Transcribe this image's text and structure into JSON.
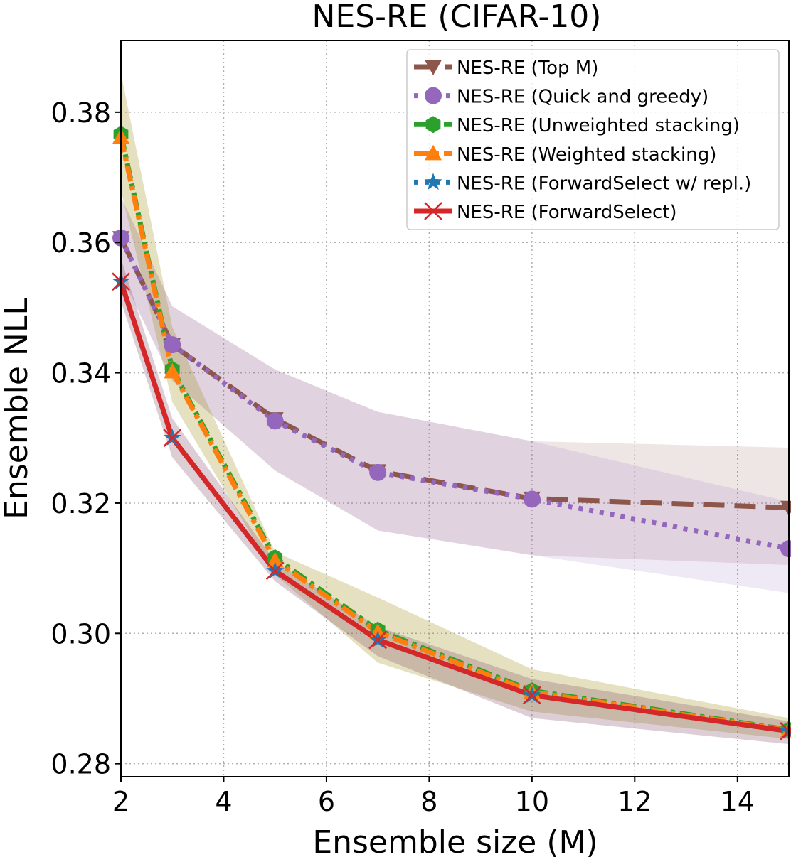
{
  "chart_data": {
    "type": "line",
    "title": "NES-RE (CIFAR-10)",
    "xlabel": "Ensemble size (M)",
    "ylabel": "Ensemble NLL",
    "xlim": [
      2,
      15
    ],
    "ylim": [
      0.278,
      0.391
    ],
    "xticks": [
      2,
      4,
      6,
      8,
      10,
      12,
      14
    ],
    "xtick_labels": [
      "2",
      "4",
      "6",
      "8",
      "10",
      "12",
      "14"
    ],
    "yticks": [
      0.28,
      0.3,
      0.32,
      0.34,
      0.36,
      0.38
    ],
    "ytick_labels": [
      "0.28",
      "0.30",
      "0.32",
      "0.34",
      "0.36",
      "0.38"
    ],
    "grid": true,
    "legend_position": "top-right",
    "x": [
      2,
      3,
      5,
      7,
      10,
      15
    ],
    "series": [
      {
        "name": "NES-RE (Top M)",
        "color": "#8c564b",
        "dash": "long-dash",
        "marker": "triangle-down",
        "values": [
          0.3607,
          0.3443,
          0.3329,
          0.3249,
          0.3207,
          0.3193
        ],
        "band_low": [
          0.355,
          0.3388,
          0.325,
          0.3158,
          0.312,
          0.3105
        ],
        "band_high": [
          0.367,
          0.3502,
          0.3405,
          0.334,
          0.3295,
          0.3285
        ]
      },
      {
        "name": "NES-RE (Quick and greedy)",
        "color": "#9467bd",
        "dash": "dotted",
        "marker": "circle",
        "values": [
          0.3607,
          0.3443,
          0.3326,
          0.3247,
          0.3206,
          0.313
        ],
        "band_low": [
          0.355,
          0.3388,
          0.325,
          0.3158,
          0.312,
          0.3062
        ],
        "band_high": [
          0.367,
          0.3502,
          0.3405,
          0.334,
          0.3295,
          0.3202
        ]
      },
      {
        "name": "NES-RE (Unweighted stacking)",
        "color": "#2ca02c",
        "dash": "dash-dot",
        "marker": "hexagon",
        "values": [
          0.3766,
          0.3405,
          0.3116,
          0.3005,
          0.2912,
          0.2852
        ],
        "band_low": [
          0.368,
          0.3355,
          0.309,
          0.2955,
          0.288,
          0.2838
        ],
        "band_high": [
          0.386,
          0.347,
          0.3125,
          0.3055,
          0.2945,
          0.287
        ]
      },
      {
        "name": "NES-RE (Weighted stacking)",
        "color": "#ff7f0e",
        "dash": "dash-dot",
        "marker": "triangle-up",
        "values": [
          0.3762,
          0.3402,
          0.3112,
          0.3002,
          0.291,
          0.2851
        ],
        "band_low": [
          0.368,
          0.3355,
          0.309,
          0.2955,
          0.288,
          0.2838
        ],
        "band_high": [
          0.386,
          0.347,
          0.3125,
          0.3055,
          0.2945,
          0.287
        ]
      },
      {
        "name": "NES-RE (ForwardSelect w/ repl.)",
        "color": "#1f77b4",
        "dash": "dotted",
        "marker": "star",
        "values": [
          0.354,
          0.33,
          0.3096,
          0.299,
          0.2905,
          0.285
        ],
        "band_low": [
          0.351,
          0.327,
          0.308,
          0.2965,
          0.287,
          0.283
        ],
        "band_high": [
          0.3575,
          0.333,
          0.311,
          0.301,
          0.293,
          0.2865
        ]
      },
      {
        "name": "NES-RE (ForwardSelect)",
        "color": "#d62728",
        "dash": "solid",
        "marker": "x",
        "values": [
          0.354,
          0.33,
          0.3096,
          0.299,
          0.2905,
          0.285
        ],
        "band_low": [
          0.351,
          0.327,
          0.308,
          0.2965,
          0.287,
          0.283
        ],
        "band_high": [
          0.3575,
          0.333,
          0.311,
          0.301,
          0.293,
          0.2865
        ]
      }
    ]
  }
}
